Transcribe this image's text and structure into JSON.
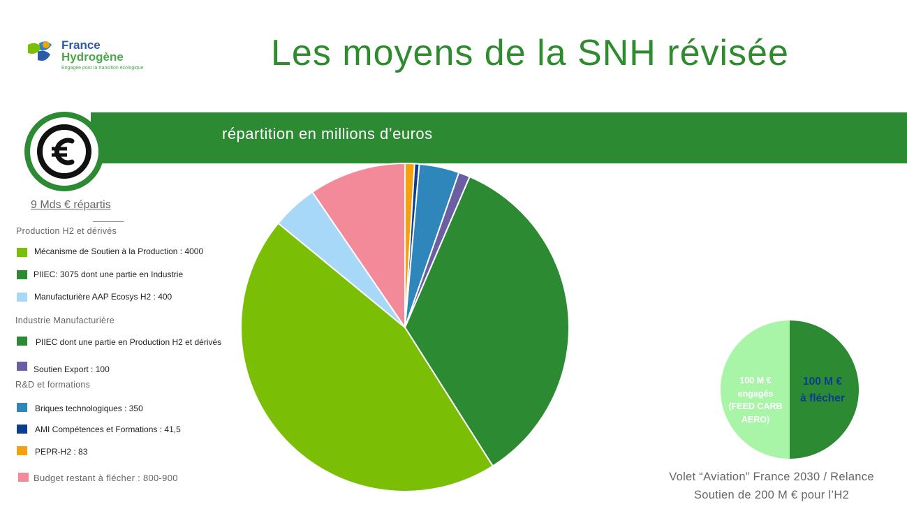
{
  "logo": {
    "line1": "France",
    "line2": "Hydrogène",
    "tagline": "Engagée pour la transition écologique"
  },
  "title": "Les moyens de la SNH révisée",
  "banner": "répartition en millions d’euros",
  "euro_icon": "euro-icon",
  "total": "9 Mds € répartis",
  "categories": {
    "production": "Production H2 et dérivés",
    "industrie": "Industrie Manufacturière",
    "rd": "R&D et formations"
  },
  "legend": [
    {
      "label": "Mécanisme de Soutien à la Production : 4000",
      "color": "#7abf05"
    },
    {
      "label": "PIIEC: 3075 dont une partie en Industrie",
      "color": "#2b8a32"
    },
    {
      "label": "Manufacturière AAP Ecosys H2 : 400",
      "color": "#a8d8f8"
    },
    {
      "label": "PIIEC dont une partie en Production H2 et dérivés",
      "color": "#2b8a32"
    },
    {
      "label": "Soutien Export : 100",
      "color": "#6b5fa3"
    },
    {
      "label": "Briques technologiques : 350",
      "color": "#2e86bb"
    },
    {
      "label": "AMI Compétences et Formations : 41,5",
      "color": "#0b3d91"
    },
    {
      "label": "PEPR-H2 : 83",
      "color": "#f5a00f"
    },
    {
      "label": "Budget restant à flécher : 800-900",
      "color": "#f28a9a"
    }
  ],
  "chart_data": [
    {
      "type": "pie",
      "title": "répartition en millions d’euros",
      "slices": [
        {
          "label": "PEPR-H2",
          "value": 83,
          "color": "#f5a00f"
        },
        {
          "label": "AMI Compétences et Formations",
          "value": 41.5,
          "color": "#0b3d91"
        },
        {
          "label": "Briques technologiques",
          "value": 350,
          "color": "#2e86bb"
        },
        {
          "label": "Soutien Export",
          "value": 100,
          "color": "#6b5fa3"
        },
        {
          "label": "PIIEC",
          "value": 3075,
          "color": "#2b8a32"
        },
        {
          "label": "Mécanisme de Soutien à la Production",
          "value": 4000,
          "color": "#7abf05"
        },
        {
          "label": "Manufacturière AAP Ecosys H2",
          "value": 400,
          "color": "#a8d8f8"
        },
        {
          "label": "Budget restant à flécher",
          "value": 850,
          "color": "#f28a9a"
        }
      ]
    },
    {
      "type": "pie",
      "slices": [
        {
          "label": "100 M € engagés (FEED CARB AERO)",
          "value": 100,
          "color": "#2b8a32"
        },
        {
          "label": "100 M € à flécher",
          "value": 100,
          "color": "#a8f5a8"
        }
      ]
    }
  ],
  "mini": {
    "left_lines": [
      "100 M €",
      "engagés",
      "(FEED CARB",
      "AERO)"
    ],
    "right_lines": [
      "100 M €",
      "à flécher"
    ]
  },
  "note": {
    "line1": "Volet “Aviation” France 2030 / Relance",
    "line2": "Soutien de 200 M € pour l’H2"
  }
}
